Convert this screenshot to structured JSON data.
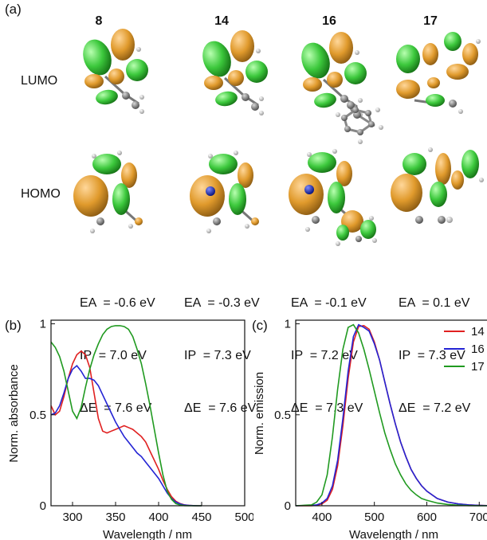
{
  "panel_a": {
    "label": "(a)",
    "molecules": [
      {
        "id": "8",
        "ea": "EA  = -0.6 eV",
        "ip": "IP  = 7.0 eV",
        "de": "ΔE  = 7.6 eV"
      },
      {
        "id": "14",
        "ea": "EA  = -0.3 eV",
        "ip": "IP  = 7.3 eV",
        "de": "ΔE  = 7.6 eV"
      },
      {
        "id": "16",
        "ea": "EA  = -0.1 eV",
        "ip": "IP  = 7.2 eV",
        "de": "ΔE  = 7.3 eV"
      },
      {
        "id": "17",
        "ea": "EA  = 0.1 eV",
        "ip": "IP  = 7.3 eV",
        "de": "ΔE  = 7.2 eV"
      }
    ],
    "row_labels": {
      "lumo": "LUMO",
      "homo": "HOMO"
    },
    "colors": {
      "positive_lobe": "#e09a2c",
      "negative_lobe": "#3cc83c",
      "carbon": "#808080",
      "hydrogen": "#e8e8e8",
      "nitrogen": "#1c2fc4"
    }
  },
  "panel_b": {
    "label": "(b)",
    "chart_data": {
      "type": "line",
      "xlabel": "Wavelength / nm",
      "ylabel": "Norm. absorbance",
      "xlim": [
        275,
        500
      ],
      "ylim": [
        0,
        1.02
      ],
      "xticks": [
        300,
        350,
        400,
        450,
        500
      ],
      "yticks": [
        0,
        0.5,
        1
      ],
      "ytick_labels": [
        "0",
        "0.5",
        "1"
      ],
      "series": [
        {
          "color": "#e02020",
          "x": [
            275,
            280,
            285,
            290,
            295,
            300,
            305,
            310,
            315,
            320,
            325,
            330,
            335,
            340,
            345,
            350,
            355,
            360,
            365,
            370,
            375,
            380,
            385,
            390,
            395,
            400,
            405,
            410,
            415,
            420,
            425,
            430,
            435,
            440,
            445,
            450
          ],
          "y": [
            0.55,
            0.5,
            0.52,
            0.6,
            0.7,
            0.78,
            0.83,
            0.85,
            0.83,
            0.76,
            0.62,
            0.48,
            0.41,
            0.4,
            0.41,
            0.42,
            0.43,
            0.44,
            0.43,
            0.42,
            0.4,
            0.38,
            0.35,
            0.3,
            0.25,
            0.2,
            0.14,
            0.09,
            0.05,
            0.025,
            0.012,
            0.005,
            0.002,
            0.001,
            0,
            0
          ]
        },
        {
          "color": "#2424d4",
          "x": [
            275,
            280,
            285,
            290,
            295,
            300,
            305,
            310,
            315,
            320,
            325,
            330,
            335,
            340,
            345,
            350,
            355,
            360,
            365,
            370,
            375,
            380,
            385,
            390,
            395,
            400,
            405,
            410,
            415,
            420,
            425,
            430,
            435,
            440,
            445,
            450
          ],
          "y": [
            0.5,
            0.51,
            0.55,
            0.62,
            0.7,
            0.75,
            0.77,
            0.74,
            0.7,
            0.7,
            0.69,
            0.66,
            0.61,
            0.56,
            0.51,
            0.46,
            0.42,
            0.38,
            0.35,
            0.32,
            0.29,
            0.27,
            0.24,
            0.21,
            0.18,
            0.15,
            0.11,
            0.07,
            0.04,
            0.02,
            0.01,
            0.004,
            0.002,
            0.001,
            0,
            0
          ]
        },
        {
          "color": "#209a20",
          "x": [
            275,
            280,
            285,
            290,
            295,
            300,
            305,
            310,
            315,
            320,
            325,
            330,
            335,
            340,
            345,
            350,
            355,
            360,
            365,
            370,
            375,
            380,
            385,
            390,
            395,
            400,
            405,
            410,
            415,
            420,
            425,
            430,
            435,
            440,
            445,
            450
          ],
          "y": [
            0.9,
            0.87,
            0.82,
            0.74,
            0.63,
            0.52,
            0.48,
            0.54,
            0.65,
            0.75,
            0.83,
            0.89,
            0.94,
            0.97,
            0.985,
            0.99,
            0.99,
            0.985,
            0.97,
            0.93,
            0.86,
            0.78,
            0.67,
            0.55,
            0.42,
            0.29,
            0.17,
            0.08,
            0.035,
            0.012,
            0.004,
            0.001,
            0,
            0,
            0,
            0
          ]
        }
      ]
    }
  },
  "panel_c": {
    "label": "(c)",
    "chart_data": {
      "type": "line",
      "xlabel": "Wavelength / nm",
      "ylabel": "Norm. emission",
      "xlim": [
        350,
        730
      ],
      "ylim": [
        0,
        1.02
      ],
      "xticks": [
        400,
        500,
        600,
        700
      ],
      "yticks": [
        0,
        0.5,
        1
      ],
      "ytick_labels": [
        "0",
        "0.5",
        "1"
      ],
      "legend_position": "top-right",
      "series": [
        {
          "name": "14",
          "color": "#e02020",
          "x": [
            350,
            380,
            390,
            400,
            410,
            420,
            430,
            440,
            450,
            460,
            470,
            480,
            490,
            500,
            510,
            520,
            530,
            540,
            550,
            560,
            570,
            580,
            590,
            600,
            620,
            640,
            660,
            680,
            700,
            730
          ],
          "y": [
            0,
            0,
            0.002,
            0.01,
            0.03,
            0.09,
            0.22,
            0.44,
            0.7,
            0.9,
            0.985,
            0.99,
            0.97,
            0.9,
            0.8,
            0.68,
            0.56,
            0.45,
            0.35,
            0.27,
            0.2,
            0.15,
            0.11,
            0.08,
            0.04,
            0.02,
            0.01,
            0.005,
            0.002,
            0
          ]
        },
        {
          "name": "16",
          "color": "#2424d4",
          "x": [
            350,
            380,
            390,
            400,
            410,
            420,
            430,
            440,
            450,
            460,
            470,
            480,
            490,
            500,
            510,
            520,
            530,
            540,
            550,
            560,
            570,
            580,
            590,
            600,
            620,
            640,
            660,
            680,
            700,
            730
          ],
          "y": [
            0,
            0.002,
            0.005,
            0.015,
            0.04,
            0.11,
            0.25,
            0.48,
            0.74,
            0.93,
            0.995,
            0.98,
            0.96,
            0.89,
            0.8,
            0.68,
            0.56,
            0.45,
            0.35,
            0.27,
            0.2,
            0.15,
            0.11,
            0.08,
            0.04,
            0.02,
            0.01,
            0.005,
            0.002,
            0
          ]
        },
        {
          "name": "17",
          "color": "#209a20",
          "x": [
            350,
            380,
            390,
            400,
            410,
            420,
            430,
            440,
            450,
            460,
            470,
            480,
            490,
            500,
            510,
            520,
            530,
            540,
            550,
            560,
            570,
            580,
            590,
            600,
            620,
            640,
            660,
            680,
            700,
            730
          ],
          "y": [
            0,
            0.005,
            0.02,
            0.06,
            0.17,
            0.38,
            0.64,
            0.86,
            0.98,
            0.995,
            0.95,
            0.86,
            0.75,
            0.63,
            0.51,
            0.4,
            0.31,
            0.23,
            0.17,
            0.12,
            0.085,
            0.06,
            0.04,
            0.03,
            0.015,
            0.007,
            0.003,
            0.001,
            0,
            0
          ]
        }
      ]
    }
  }
}
